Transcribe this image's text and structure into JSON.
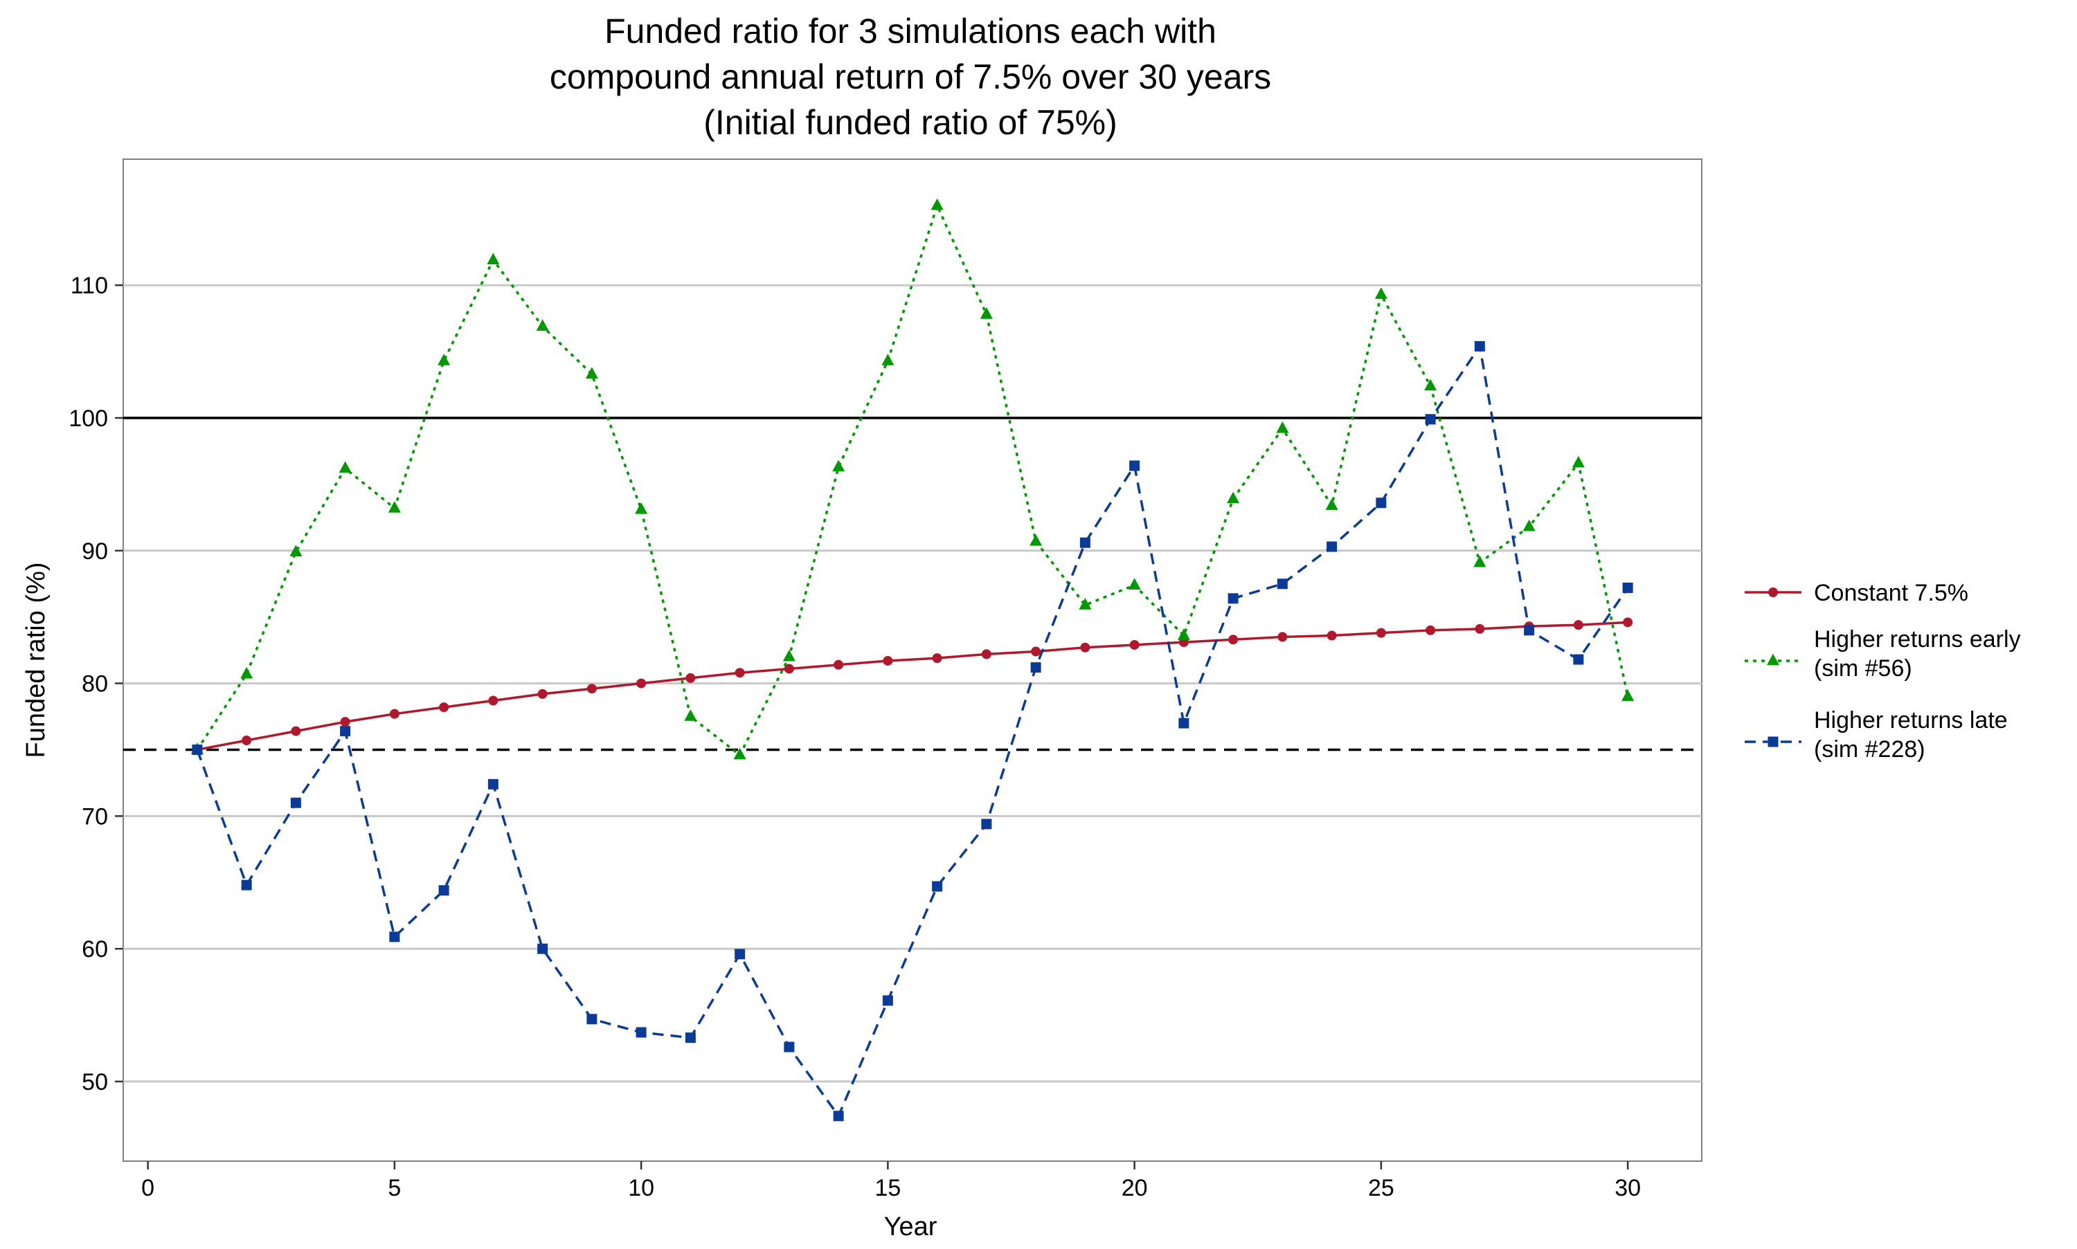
{
  "chart_data": {
    "type": "line",
    "title": [
      "Funded ratio for 3 simulations each with",
      "compound annual return of 7.5% over 30 years",
      "(Initial funded ratio of 75%)"
    ],
    "xlabel": "Year",
    "ylabel": "Funded ratio (%)",
    "xlim": [
      -0.5,
      31.5
    ],
    "ylim": [
      44,
      119.5
    ],
    "xticks": [
      0,
      5,
      10,
      15,
      20,
      25,
      30
    ],
    "yticks": [
      50,
      60,
      70,
      80,
      90,
      100,
      110
    ],
    "grid": "horizontal",
    "legend_position": "right",
    "reference_lines": [
      {
        "y": 100,
        "style": "solid",
        "color": "#000000"
      },
      {
        "y": 75,
        "style": "dashed",
        "color": "#000000"
      }
    ],
    "x": [
      1,
      2,
      3,
      4,
      5,
      6,
      7,
      8,
      9,
      10,
      11,
      12,
      13,
      14,
      15,
      16,
      17,
      18,
      19,
      20,
      21,
      22,
      23,
      24,
      25,
      26,
      27,
      28,
      29,
      30
    ],
    "series": [
      {
        "name": "Constant 7.5%",
        "legend_lines": [
          "Constant 7.5%"
        ],
        "color": "#b2182b",
        "dash": "solid",
        "marker": "circle",
        "values": [
          75.0,
          75.7,
          76.4,
          77.1,
          77.7,
          78.2,
          78.7,
          79.2,
          79.6,
          80.0,
          80.4,
          80.8,
          81.1,
          81.4,
          81.7,
          81.9,
          82.2,
          82.4,
          82.7,
          82.9,
          83.1,
          83.3,
          83.5,
          83.6,
          83.8,
          84.0,
          84.1,
          84.3,
          84.4,
          84.6
        ]
      },
      {
        "name": "Higher returns early (sim #56)",
        "legend_lines": [
          "Higher returns early",
          "(sim #56)"
        ],
        "color": "#009900",
        "dash": "dotted",
        "marker": "triangle",
        "values": [
          75.0,
          80.7,
          89.9,
          96.2,
          93.2,
          104.3,
          111.9,
          106.9,
          103.3,
          93.1,
          77.5,
          74.6,
          82.0,
          96.3,
          104.3,
          116.0,
          107.8,
          90.7,
          85.9,
          87.4,
          83.6,
          93.9,
          99.2,
          93.4,
          109.3,
          102.4,
          89.1,
          91.8,
          96.6,
          79.0
        ]
      },
      {
        "name": "Higher returns late (sim #228)",
        "legend_lines": [
          "Higher returns late",
          "(sim #228)"
        ],
        "color": "#0a3b99",
        "dash": "dashed",
        "marker": "square",
        "values": [
          75.0,
          64.8,
          71.0,
          76.4,
          60.9,
          64.4,
          72.4,
          60.0,
          54.7,
          53.7,
          53.3,
          59.6,
          52.6,
          47.4,
          56.1,
          64.7,
          69.4,
          81.2,
          90.6,
          96.4,
          77.0,
          86.4,
          87.5,
          90.3,
          93.6,
          99.9,
          105.4,
          84.0,
          81.8,
          87.2
        ]
      }
    ]
  }
}
